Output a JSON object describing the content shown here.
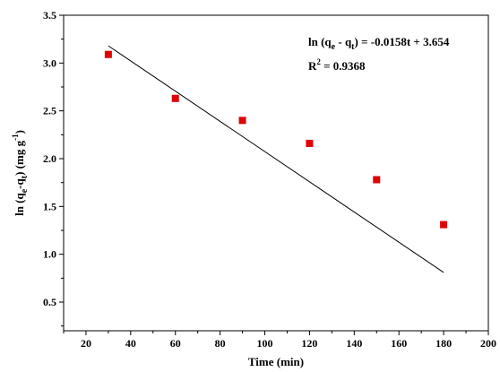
{
  "chart_data": {
    "type": "scatter",
    "title": "",
    "xlabel": "Time (min)",
    "ylabel": {
      "prefix": "ln (q",
      "sub1": "e",
      "mid": "-q",
      "sub2": "t",
      "suffix": ") (mg g",
      "sup": "-1",
      "end": ")"
    },
    "xlim": [
      10,
      200
    ],
    "ylim": [
      0.2,
      3.5
    ],
    "xticks": [
      20,
      40,
      60,
      80,
      100,
      120,
      140,
      160,
      180,
      200
    ],
    "yticks": [
      0.5,
      1.0,
      1.5,
      2.0,
      2.5,
      3.0,
      3.5
    ],
    "xtick_labels": [
      "20",
      "40",
      "60",
      "80",
      "100",
      "120",
      "140",
      "160",
      "180",
      "200"
    ],
    "ytick_labels": [
      "0.5",
      "1.0",
      "1.5",
      "2.0",
      "2.5",
      "3.0",
      "3.5"
    ],
    "series": [
      {
        "marker": "square",
        "color": "#e00000",
        "x": [
          30,
          60,
          90,
          120,
          150,
          180
        ],
        "y": [
          3.09,
          2.63,
          2.4,
          2.16,
          1.78,
          1.31
        ]
      }
    ],
    "fit_line": {
      "color": "#000000",
      "x": [
        30,
        180
      ],
      "y": [
        3.18,
        0.81
      ]
    },
    "annotations": {
      "equation": {
        "prefix": "ln (q",
        "sub1": "e",
        "mid": " - q",
        "sub2": "t",
        "suffix": ") = -0.0158t + 3.654"
      },
      "r2": {
        "base": "R",
        "sup": "2",
        "suffix": " = 0.9368"
      }
    },
    "grid": false
  }
}
